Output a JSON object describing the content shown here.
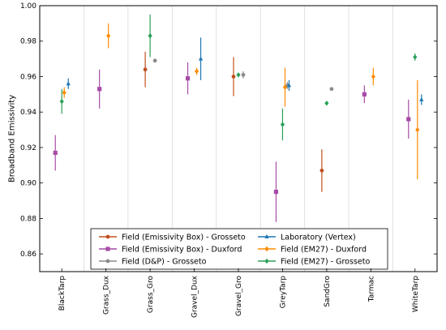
{
  "chart_data": {
    "type": "scatter",
    "ylabel": "Broadband Emissivity",
    "ylim": [
      0.85,
      1.0
    ],
    "yticks": [
      0.86,
      0.88,
      0.9,
      0.92,
      0.94,
      0.96,
      0.98,
      1.0
    ],
    "ytick_labels": [
      "0.86",
      "0.88",
      "0.90",
      "0.92",
      "0.94",
      "0.96",
      "0.98",
      "1.00"
    ],
    "categories": [
      "BlackTarp",
      "Grass_Dux",
      "Grass_Gro",
      "Gravel_Dux",
      "Gravel_Gro",
      "GreyTarp",
      "SandGro",
      "Tarmac",
      "WhiteTarp"
    ],
    "grid": "vertical category separators",
    "legend_position": "bottom-center",
    "series": [
      {
        "name": "Field (Emissivity Box) - Grosseto",
        "color": "#c0501f",
        "marker": "circle",
        "points": [
          {
            "category": "Grass_Gro",
            "value": 0.964,
            "err_low": 0.954,
            "err_high": 0.974
          },
          {
            "category": "Gravel_Gro",
            "value": 0.96,
            "err_low": 0.949,
            "err_high": 0.971
          },
          {
            "category": "SandGro",
            "value": 0.907,
            "err_low": 0.895,
            "err_high": 0.919
          }
        ]
      },
      {
        "name": "Field (Emissivity Box) - Duxford",
        "color": "#a64ca6",
        "marker": "square",
        "points": [
          {
            "category": "BlackTarp",
            "value": 0.917,
            "err_low": 0.907,
            "err_high": 0.927
          },
          {
            "category": "Grass_Dux",
            "value": 0.953,
            "err_low": 0.942,
            "err_high": 0.964
          },
          {
            "category": "Gravel_Dux",
            "value": 0.959,
            "err_low": 0.95,
            "err_high": 0.968
          },
          {
            "category": "GreyTarp",
            "value": 0.895,
            "err_low": 0.878,
            "err_high": 0.912
          },
          {
            "category": "Tarmac",
            "value": 0.95,
            "err_low": 0.945,
            "err_high": 0.955
          },
          {
            "category": "WhiteTarp",
            "value": 0.936,
            "err_low": 0.925,
            "err_high": 0.947
          }
        ]
      },
      {
        "name": "Field (D&P) - Grosseto",
        "color": "#8c8c8c",
        "marker": "circle",
        "points": [
          {
            "category": "Grass_Gro",
            "value": 0.969,
            "err_low": 0.968,
            "err_high": 0.97
          },
          {
            "category": "Gravel_Gro",
            "value": 0.961,
            "err_low": 0.959,
            "err_high": 0.963
          },
          {
            "category": "GreyTarp",
            "value": 0.955,
            "err_low": 0.953,
            "err_high": 0.957
          },
          {
            "category": "SandGro",
            "value": 0.953,
            "err_low": 0.952,
            "err_high": 0.954
          }
        ]
      },
      {
        "name": "Laboratory (Vertex)",
        "color": "#1f77b4",
        "marker": "triangle",
        "points": [
          {
            "category": "BlackTarp",
            "value": 0.956,
            "err_low": 0.953,
            "err_high": 0.959
          },
          {
            "category": "Gravel_Dux",
            "value": 0.97,
            "err_low": 0.958,
            "err_high": 0.982
          },
          {
            "category": "GreyTarp",
            "value": 0.955,
            "err_low": 0.952,
            "err_high": 0.958
          },
          {
            "category": "WhiteTarp",
            "value": 0.947,
            "err_low": 0.944,
            "err_high": 0.95
          }
        ]
      },
      {
        "name": "Field (EM27) - Duxford",
        "color": "#ff8c00",
        "marker": "diamond",
        "points": [
          {
            "category": "BlackTarp",
            "value": 0.951,
            "err_low": 0.948,
            "err_high": 0.954
          },
          {
            "category": "Grass_Dux",
            "value": 0.983,
            "err_low": 0.976,
            "err_high": 0.99
          },
          {
            "category": "Gravel_Dux",
            "value": 0.963,
            "err_low": 0.961,
            "err_high": 0.965
          },
          {
            "category": "GreyTarp",
            "value": 0.954,
            "err_low": 0.943,
            "err_high": 0.965
          },
          {
            "category": "Tarmac",
            "value": 0.96,
            "err_low": 0.955,
            "err_high": 0.965
          },
          {
            "category": "WhiteTarp",
            "value": 0.93,
            "err_low": 0.902,
            "err_high": 0.958
          }
        ]
      },
      {
        "name": "Field (EM27) - Grosseto",
        "color": "#2ca05a",
        "marker": "diamond",
        "points": [
          {
            "category": "BlackTarp",
            "value": 0.946,
            "err_low": 0.939,
            "err_high": 0.953
          },
          {
            "category": "Grass_Gro",
            "value": 0.983,
            "err_low": 0.971,
            "err_high": 0.995
          },
          {
            "category": "Gravel_Gro",
            "value": 0.961,
            "err_low": 0.96,
            "err_high": 0.962
          },
          {
            "category": "GreyTarp",
            "value": 0.933,
            "err_low": 0.924,
            "err_high": 0.942
          },
          {
            "category": "SandGro",
            "value": 0.945,
            "err_low": 0.944,
            "err_high": 0.946
          },
          {
            "category": "WhiteTarp",
            "value": 0.971,
            "err_low": 0.969,
            "err_high": 0.973
          }
        ]
      }
    ],
    "legend_order": [
      "Field (Emissivity Box) - Grosseto",
      "Laboratory (Vertex)",
      "Field (Emissivity Box) - Duxford",
      "Field (EM27) - Duxford",
      "Field (D&P) - Grosseto",
      "Field (EM27) - Grosseto"
    ]
  }
}
